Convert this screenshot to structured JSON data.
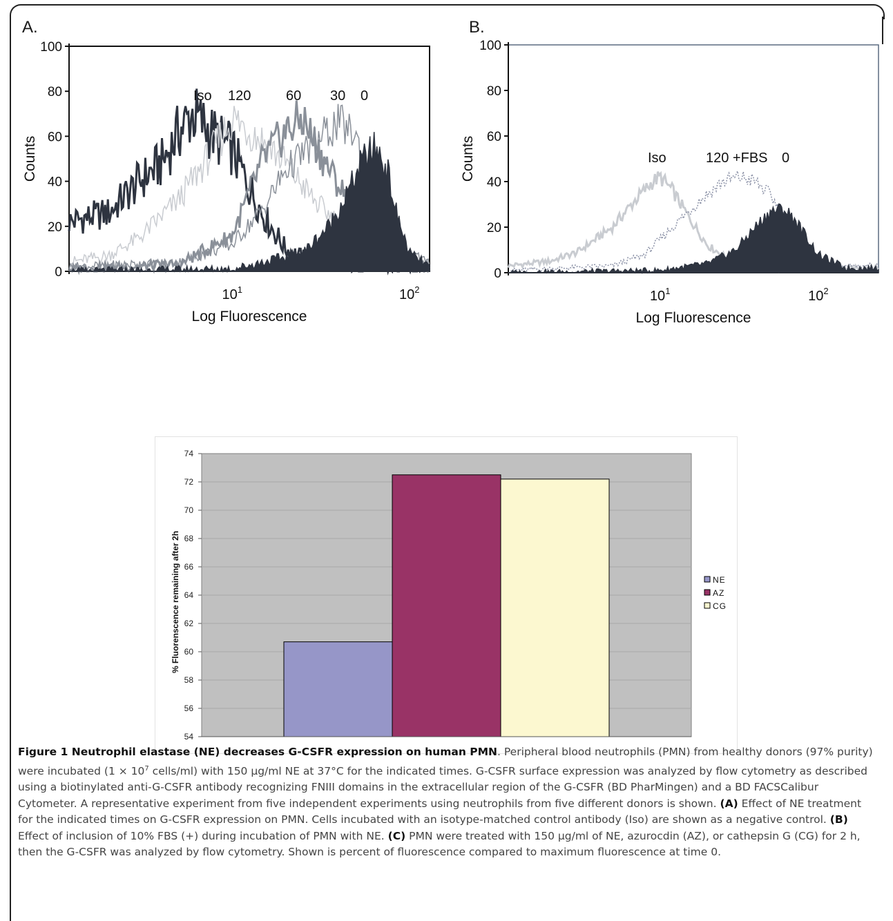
{
  "panel_a": {
    "letter": "A.",
    "ylabel": "Counts",
    "xlabel": "Log Fluorescence",
    "yticks": [
      "100",
      "80",
      "60",
      "40",
      "20",
      "0"
    ],
    "xticks": [
      {
        "base": "10",
        "exp": "1"
      },
      {
        "base": "10",
        "exp": "2"
      }
    ],
    "curve_labels": [
      "Iso",
      "120",
      "60",
      "30",
      "0"
    ]
  },
  "panel_b": {
    "letter": "B.",
    "ylabel": "Counts",
    "xlabel": "Log Fluorescence",
    "yticks": [
      "100",
      "80",
      "60",
      "40",
      "20",
      "0"
    ],
    "xticks": [
      {
        "base": "10",
        "exp": "1"
      },
      {
        "base": "10",
        "exp": "2"
      }
    ],
    "curve_labels": [
      "Iso",
      "120 +FBS",
      "0"
    ]
  },
  "colors": {
    "dark": "#2e3440",
    "mid_gray": "#8a9099",
    "light_gray": "#c9ccd1",
    "plot_bg": "#c0c0c0",
    "ne": "#9696c8",
    "az": "#993366",
    "cg": "#fcf8d0"
  },
  "chart_data": [
    {
      "type": "line",
      "panel": "A",
      "xlabel": "Log Fluorescence",
      "ylabel": "Counts",
      "x_scale": "log",
      "ylim": [
        0,
        100
      ],
      "series": [
        {
          "name": "Iso",
          "x": [
            1.2,
            2,
            3,
            4,
            5,
            6,
            8,
            10,
            12,
            15,
            20,
            30,
            50,
            100
          ],
          "y": [
            22,
            26,
            40,
            48,
            62,
            70,
            60,
            54,
            40,
            25,
            10,
            3,
            2,
            1
          ]
        },
        {
          "name": "120",
          "x": [
            1.2,
            2,
            3,
            5,
            8,
            10,
            15,
            20,
            30,
            50,
            80,
            130
          ],
          "y": [
            4,
            7,
            15,
            32,
            55,
            68,
            58,
            48,
            30,
            15,
            5,
            2
          ]
        },
        {
          "name": "60",
          "x": [
            1.2,
            5,
            10,
            15,
            20,
            25,
            30,
            40,
            60,
            80,
            130
          ],
          "y": [
            1,
            3,
            16,
            50,
            62,
            68,
            55,
            38,
            15,
            5,
            2
          ]
        },
        {
          "name": "30",
          "x": [
            1.2,
            5,
            10,
            15,
            20,
            30,
            40,
            50,
            60,
            80,
            130
          ],
          "y": [
            2,
            4,
            12,
            28,
            45,
            58,
            66,
            60,
            40,
            15,
            3
          ]
        },
        {
          "name": "0",
          "x": [
            1.2,
            10,
            25,
            35,
            45,
            55,
            65,
            75,
            85,
            100,
            130
          ],
          "y": [
            0,
            1,
            8,
            20,
            35,
            50,
            55,
            45,
            25,
            8,
            2
          ]
        }
      ]
    },
    {
      "type": "line",
      "panel": "B",
      "xlabel": "Log Fluorescence",
      "ylabel": "Counts",
      "x_scale": "log",
      "ylim": [
        0,
        100
      ],
      "series": [
        {
          "name": "Iso",
          "x": [
            1.1,
            2,
            3,
            5,
            7,
            9,
            10,
            12,
            15,
            20,
            30,
            50
          ],
          "y": [
            3,
            5,
            9,
            20,
            32,
            40,
            42,
            36,
            25,
            12,
            4,
            2
          ]
        },
        {
          "name": "120 +FBS",
          "x": [
            1.1,
            5,
            8,
            12,
            18,
            25,
            32,
            40,
            50,
            60,
            80,
            120
          ],
          "y": [
            1,
            3,
            8,
            20,
            32,
            40,
            42,
            40,
            34,
            25,
            10,
            3
          ]
        },
        {
          "name": "0",
          "x": [
            1.1,
            10,
            20,
            30,
            40,
            50,
            60,
            70,
            80,
            100,
            150
          ],
          "y": [
            0,
            1,
            4,
            10,
            20,
            27,
            28,
            24,
            18,
            8,
            2
          ]
        }
      ]
    },
    {
      "type": "bar",
      "panel": "C",
      "ylabel": "% Fluorenscence remaining after 2h",
      "categories": [
        "NE",
        "AZ",
        "CG"
      ],
      "values": [
        60.7,
        72.5,
        72.2
      ],
      "ylim": [
        54,
        74
      ],
      "yticks": [
        54,
        56,
        58,
        60,
        62,
        64,
        66,
        68,
        70,
        72,
        74
      ],
      "grid": true,
      "legend": "right"
    }
  ],
  "caption": {
    "title": "Figure 1 Neutrophil elastase (NE) decreases G-CSFR expression on human PMN",
    "p1": ". Peripheral blood neutrophils (PMN) from healthy donors (97% purity) were incubated (1 × 10",
    "sup": "7",
    "p2": " cells/ml) with 150 μg/ml NE at 37°C for the indicated times. G-CSFR surface expression was analyzed by flow cytometry as described using a biotinylated anti-G-CSFR antibody recognizing FNIII domains in the extracellular region of the G-CSFR (BD PharMingen) and a BD FACSCalibur Cytometer. A representative experiment from five independent experiments using neutrophils from five different donors is shown. ",
    "a_label": "(A)",
    "a_text": " Effect of NE treatment for the indicated times on G-CSFR expression on PMN. Cells incubated with an isotype-matched control antibody (Iso) are shown as a negative control. ",
    "b_label": "(B)",
    "b_text": " Effect of inclusion of 10% FBS (+) during incubation of PMN with NE. ",
    "c_label": "(C)",
    "c_text": " PMN were treated with 150 μg/ml of NE, azurocdin (AZ), or cathepsin G (CG) for 2 h, then the G-CSFR was analyzed by flow cytometry. Shown is percent of fluorescence compared to maximum fluorescence at time 0."
  }
}
